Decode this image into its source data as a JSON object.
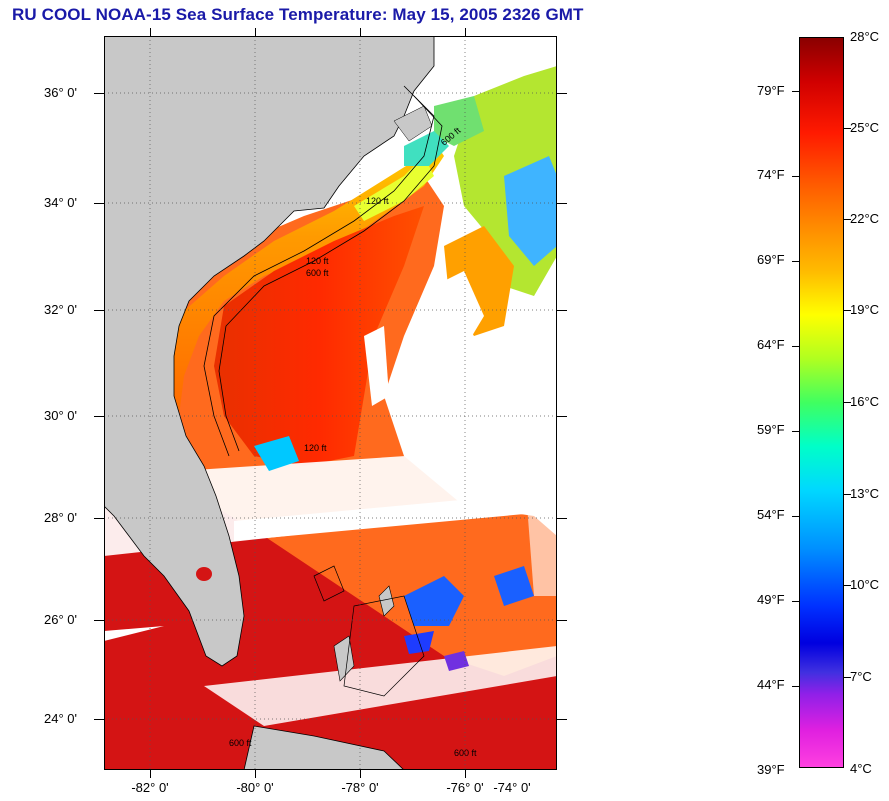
{
  "title": "RU COOL  NOAA-15  Sea Surface Temperature:  May 15, 2005 2326 GMT",
  "map": {
    "latitude_labels": [
      "36° 0'",
      "34° 0'",
      "32° 0'",
      "30° 0'",
      "28° 0'",
      "26° 0'",
      "24° 0'"
    ],
    "longitude_labels": [
      "-82° 0'",
      "-80° 0'",
      "-78° 0'",
      "-76° 0'",
      "-74° 0'"
    ],
    "isobath_labels": [
      "600 ft",
      "120 ft",
      "120 ft",
      "600 ft",
      "120 ft",
      "600 ft",
      "600 ft"
    ],
    "colors": {
      "land": "#c8c8c8",
      "cloud": "#ffffff",
      "grid": "#555555"
    }
  },
  "colorbar": {
    "celsius_labels": [
      "28°C",
      "25°C",
      "22°C",
      "19°C",
      "16°C",
      "13°C",
      "10°C",
      "7°C",
      "4°C"
    ],
    "fahrenheit_labels": [
      "79°F",
      "74°F",
      "69°F",
      "64°F",
      "59°F",
      "54°F",
      "49°F",
      "44°F",
      "39°F"
    ]
  }
}
